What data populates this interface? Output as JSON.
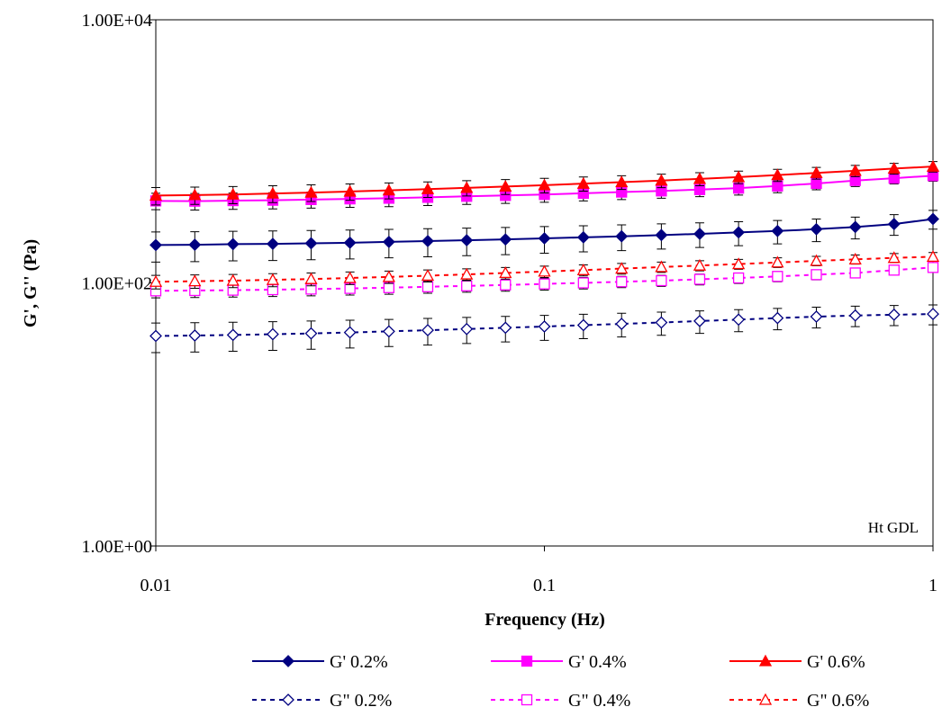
{
  "chart_data": {
    "type": "line",
    "xlabel": "Frequency (Hz)",
    "ylabel": "G', G'' (Pa)",
    "annotation": "Ht GDL",
    "xscale": "log",
    "yscale": "log",
    "xlim": [
      0.01,
      1
    ],
    "ylim": [
      1,
      10000
    ],
    "xticks": [
      0.01,
      0.1,
      1
    ],
    "yticks": [
      {
        "value": 1,
        "label": "1.00E+00"
      },
      {
        "value": 100,
        "label": "1.00E+02"
      },
      {
        "value": 10000,
        "label": "1.00E+04"
      }
    ],
    "x": [
      0.01,
      0.0126,
      0.0158,
      0.02,
      0.0251,
      0.0316,
      0.0398,
      0.0501,
      0.0631,
      0.0794,
      0.1,
      0.126,
      0.158,
      0.2,
      0.251,
      0.316,
      0.398,
      0.501,
      0.631,
      0.794,
      1
    ],
    "series": [
      {
        "name": "G' 0.2%",
        "color": "#000080",
        "line_style": "solid",
        "marker": "diamond",
        "filled": true,
        "error": 50,
        "values": [
          194,
          195,
          197,
          198,
          200,
          202,
          205,
          208,
          211,
          214,
          218,
          222,
          226,
          231,
          236,
          242,
          248,
          256,
          266,
          280,
          306
        ]
      },
      {
        "name": "G' 0.4%",
        "color": "#ff00ff",
        "line_style": "solid",
        "marker": "square",
        "filled": true,
        "error": 60,
        "values": [
          420,
          418,
          422,
          425,
          430,
          435,
          440,
          447,
          455,
          462,
          470,
          480,
          490,
          500,
          512,
          525,
          545,
          570,
          600,
          625,
          653
        ]
      },
      {
        "name": "G' 0.6%",
        "color": "#ff0000",
        "line_style": "solid",
        "marker": "triangle",
        "filled": true,
        "error": 70,
        "values": [
          461,
          465,
          470,
          478,
          486,
          495,
          505,
          516,
          528,
          540,
          553,
          568,
          583,
          600,
          618,
          637,
          660,
          685,
          712,
          740,
          766
        ]
      },
      {
        "name": "G\" 0.2%",
        "color": "#000080",
        "line_style": "dashed",
        "marker": "diamond",
        "filled": false,
        "error": 10,
        "values": [
          39.5,
          39.8,
          40.2,
          40.7,
          41.3,
          42,
          42.8,
          43.7,
          44.6,
          45.6,
          46.6,
          47.7,
          48.8,
          50,
          51.3,
          52.6,
          54,
          55.4,
          56.5,
          57.3,
          58
        ]
      },
      {
        "name": "G\" 0.4%",
        "color": "#ff00ff",
        "line_style": "dashed",
        "marker": "square",
        "filled": false,
        "error": 10,
        "values": [
          87,
          87.5,
          88,
          88.8,
          89.7,
          90.8,
          92,
          93.4,
          94.9,
          96.5,
          98.2,
          100,
          102,
          104,
          106.5,
          109,
          112,
          115.5,
          119,
          125,
          131
        ]
      },
      {
        "name": "G\" 0.6%",
        "color": "#ff0000",
        "line_style": "dashed",
        "marker": "triangle",
        "filled": false,
        "error": 12,
        "values": [
          102,
          103,
          104,
          105.5,
          107,
          109,
          111,
          113.5,
          116,
          119,
          122,
          125,
          128.5,
          132,
          135.5,
          139,
          143,
          147,
          151,
          155,
          158
        ]
      }
    ]
  }
}
